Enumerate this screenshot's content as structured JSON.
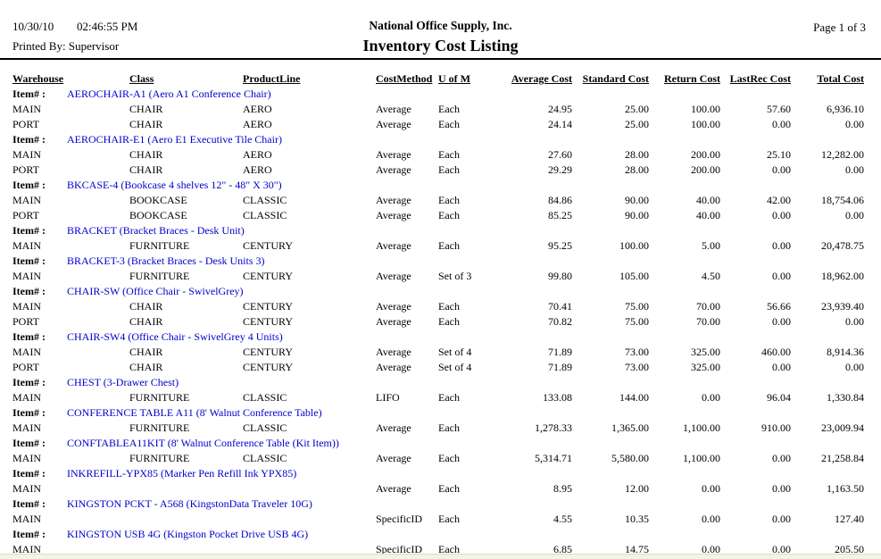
{
  "meta": {
    "date": "10/30/10",
    "time": "02:46:55 PM",
    "printed_by": "Printed By: Supervisor",
    "company": "National Office Supply, Inc.",
    "title": "Inventory Cost Listing",
    "page": "Page 1 of 3"
  },
  "colors": {
    "item_link_blue": "#0000CC",
    "text": "#000000",
    "rule": "#000000",
    "bottom_strip": "#F4F3E6"
  },
  "table": {
    "item_label": "Item# :",
    "columns": [
      "Warehouse",
      "Class",
      "ProductLine",
      "CostMethod",
      "U of M",
      "Average Cost",
      "Standard Cost",
      "Return Cost",
      "LastRec Cost",
      "Total Cost"
    ],
    "rows": [
      {
        "type": "item",
        "text": "AEROCHAIR-A1 (Aero A1 Conference Chair)"
      },
      {
        "type": "data",
        "warehouse": "MAIN",
        "class": "CHAIR",
        "product_line": "AERO",
        "cost_method": "Average",
        "uom": "Each",
        "average_cost": "24.95",
        "standard_cost": "25.00",
        "return_cost": "100.00",
        "last_rec_cost": "57.60",
        "total_cost": "6,936.10"
      },
      {
        "type": "data",
        "warehouse": "PORT",
        "class": "CHAIR",
        "product_line": "AERO",
        "cost_method": "Average",
        "uom": "Each",
        "average_cost": "24.14",
        "standard_cost": "25.00",
        "return_cost": "100.00",
        "last_rec_cost": "0.00",
        "total_cost": "0.00"
      },
      {
        "type": "item",
        "text": "AEROCHAIR-E1 (Aero E1 Executive Tile Chair)"
      },
      {
        "type": "data",
        "warehouse": "MAIN",
        "class": "CHAIR",
        "product_line": "AERO",
        "cost_method": "Average",
        "uom": "Each",
        "average_cost": "27.60",
        "standard_cost": "28.00",
        "return_cost": "200.00",
        "last_rec_cost": "25.10",
        "total_cost": "12,282.00"
      },
      {
        "type": "data",
        "warehouse": "PORT",
        "class": "CHAIR",
        "product_line": "AERO",
        "cost_method": "Average",
        "uom": "Each",
        "average_cost": "29.29",
        "standard_cost": "28.00",
        "return_cost": "200.00",
        "last_rec_cost": "0.00",
        "total_cost": "0.00"
      },
      {
        "type": "item",
        "text": "BKCASE-4 (Bookcase 4 shelves 12\" - 48\" X 30\")"
      },
      {
        "type": "data",
        "warehouse": "MAIN",
        "class": "BOOKCASE",
        "product_line": "CLASSIC",
        "cost_method": "Average",
        "uom": "Each",
        "average_cost": "84.86",
        "standard_cost": "90.00",
        "return_cost": "40.00",
        "last_rec_cost": "42.00",
        "total_cost": "18,754.06"
      },
      {
        "type": "data",
        "warehouse": "PORT",
        "class": "BOOKCASE",
        "product_line": "CLASSIC",
        "cost_method": "Average",
        "uom": "Each",
        "average_cost": "85.25",
        "standard_cost": "90.00",
        "return_cost": "40.00",
        "last_rec_cost": "0.00",
        "total_cost": "0.00"
      },
      {
        "type": "item",
        "text": "BRACKET (Bracket Braces - Desk Unit)"
      },
      {
        "type": "data",
        "warehouse": "MAIN",
        "class": "FURNITURE",
        "product_line": "CENTURY",
        "cost_method": "Average",
        "uom": "Each",
        "average_cost": "95.25",
        "standard_cost": "100.00",
        "return_cost": "5.00",
        "last_rec_cost": "0.00",
        "total_cost": "20,478.75"
      },
      {
        "type": "item",
        "text": "BRACKET-3 (Bracket Braces - Desk Units 3)"
      },
      {
        "type": "data",
        "warehouse": "MAIN",
        "class": "FURNITURE",
        "product_line": "CENTURY",
        "cost_method": "Average",
        "uom": "Set of 3",
        "average_cost": "99.80",
        "standard_cost": "105.00",
        "return_cost": "4.50",
        "last_rec_cost": "0.00",
        "total_cost": "18,962.00"
      },
      {
        "type": "item",
        "text": "CHAIR-SW (Office Chair - SwivelGrey)"
      },
      {
        "type": "data",
        "warehouse": "MAIN",
        "class": "CHAIR",
        "product_line": "CENTURY",
        "cost_method": "Average",
        "uom": "Each",
        "average_cost": "70.41",
        "standard_cost": "75.00",
        "return_cost": "70.00",
        "last_rec_cost": "56.66",
        "total_cost": "23,939.40"
      },
      {
        "type": "data",
        "warehouse": "PORT",
        "class": "CHAIR",
        "product_line": "CENTURY",
        "cost_method": "Average",
        "uom": "Each",
        "average_cost": "70.82",
        "standard_cost": "75.00",
        "return_cost": "70.00",
        "last_rec_cost": "0.00",
        "total_cost": "0.00"
      },
      {
        "type": "item",
        "text": "CHAIR-SW4 (Office Chair - SwivelGrey 4 Units)"
      },
      {
        "type": "data",
        "warehouse": "MAIN",
        "class": "CHAIR",
        "product_line": "CENTURY",
        "cost_method": "Average",
        "uom": "Set of 4",
        "average_cost": "71.89",
        "standard_cost": "73.00",
        "return_cost": "325.00",
        "last_rec_cost": "460.00",
        "total_cost": "8,914.36"
      },
      {
        "type": "data",
        "warehouse": "PORT",
        "class": "CHAIR",
        "product_line": "CENTURY",
        "cost_method": "Average",
        "uom": "Set of 4",
        "average_cost": "71.89",
        "standard_cost": "73.00",
        "return_cost": "325.00",
        "last_rec_cost": "0.00",
        "total_cost": "0.00"
      },
      {
        "type": "item",
        "text": "CHEST (3-Drawer Chest)"
      },
      {
        "type": "data",
        "warehouse": "MAIN",
        "class": "FURNITURE",
        "product_line": "CLASSIC",
        "cost_method": "LIFO",
        "uom": "Each",
        "average_cost": "133.08",
        "standard_cost": "144.00",
        "return_cost": "0.00",
        "last_rec_cost": "96.04",
        "total_cost": "1,330.84"
      },
      {
        "type": "item",
        "text": "CONFERENCE TABLE A11 (8' Walnut Conference Table)"
      },
      {
        "type": "data",
        "warehouse": "MAIN",
        "class": "FURNITURE",
        "product_line": "CLASSIC",
        "cost_method": "Average",
        "uom": "Each",
        "average_cost": "1,278.33",
        "standard_cost": "1,365.00",
        "return_cost": "1,100.00",
        "last_rec_cost": "910.00",
        "total_cost": "23,009.94"
      },
      {
        "type": "item",
        "text": "CONFTABLEA11KIT (8' Walnut Conference Table (Kit Item))"
      },
      {
        "type": "data",
        "warehouse": "MAIN",
        "class": "FURNITURE",
        "product_line": "CLASSIC",
        "cost_method": "Average",
        "uom": "Each",
        "average_cost": "5,314.71",
        "standard_cost": "5,580.00",
        "return_cost": "1,100.00",
        "last_rec_cost": "0.00",
        "total_cost": "21,258.84"
      },
      {
        "type": "item",
        "text": "INKREFILL-YPX85 (Marker Pen Refill Ink YPX85)"
      },
      {
        "type": "data",
        "warehouse": "MAIN",
        "class": "",
        "product_line": "",
        "cost_method": "Average",
        "uom": "Each",
        "average_cost": "8.95",
        "standard_cost": "12.00",
        "return_cost": "0.00",
        "last_rec_cost": "0.00",
        "total_cost": "1,163.50"
      },
      {
        "type": "item",
        "text": "KINGSTON PCKT - A568 (KingstonData Traveler 10G)"
      },
      {
        "type": "data",
        "warehouse": "MAIN",
        "class": "",
        "product_line": "",
        "cost_method": "SpecificID",
        "uom": "Each",
        "average_cost": "4.55",
        "standard_cost": "10.35",
        "return_cost": "0.00",
        "last_rec_cost": "0.00",
        "total_cost": "127.40"
      },
      {
        "type": "item",
        "text": "KINGSTON USB 4G (Kingston Pocket Drive USB 4G)"
      },
      {
        "type": "data",
        "warehouse": "MAIN",
        "class": "",
        "product_line": "",
        "cost_method": "SpecificID",
        "uom": "Each",
        "average_cost": "6.85",
        "standard_cost": "14.75",
        "return_cost": "0.00",
        "last_rec_cost": "0.00",
        "total_cost": "205.50"
      }
    ]
  }
}
